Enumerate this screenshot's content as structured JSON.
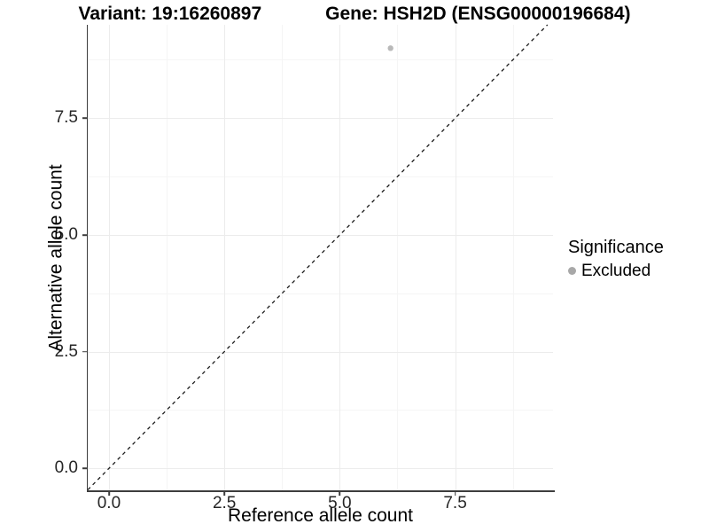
{
  "chart_data": {
    "type": "scatter",
    "title_left": "Variant: 19:16260897",
    "title_right": "Gene: HSH2D (ENSG00000196684)",
    "xlabel": "Reference allele count",
    "ylabel": "Alternative allele count",
    "xlim": [
      -0.46,
      9.62
    ],
    "ylim": [
      -0.47,
      9.5
    ],
    "x_ticks": {
      "values": [
        0,
        2.5,
        5,
        7.5
      ],
      "labels": [
        "0.0",
        "2.5",
        "5.0",
        "7.5"
      ]
    },
    "y_ticks": {
      "values": [
        0,
        2.5,
        5,
        7.5
      ],
      "labels": [
        "0.0",
        "2.5",
        "5.0",
        "7.5"
      ]
    },
    "x_minor_gridlines": [
      1.25,
      3.75,
      6.25,
      8.75
    ],
    "y_minor_gridlines": [
      1.25,
      3.75,
      6.25,
      8.75
    ],
    "grid": "major and minor, very light gray, white background",
    "series": [
      {
        "name": "Excluded",
        "color": "#b9b9b9",
        "point_radius": 3.2,
        "points": [
          {
            "x": 6.1,
            "y": 9.0
          }
        ]
      }
    ],
    "reference_line": {
      "equation": "y = x",
      "style": "dashed",
      "color": "#1a1a1a",
      "dash": "4 4",
      "width": 1.3
    },
    "legend": {
      "title": "Significance",
      "position": "right",
      "entries": [
        {
          "label": "Excluded",
          "color": "#a8a8a8"
        }
      ]
    },
    "colors": {
      "grid_major": "#ececec",
      "grid_minor": "#f5f5f5",
      "axis_line": "#3d3d3d",
      "tick_text": "#262626",
      "background": "#ffffff"
    }
  }
}
